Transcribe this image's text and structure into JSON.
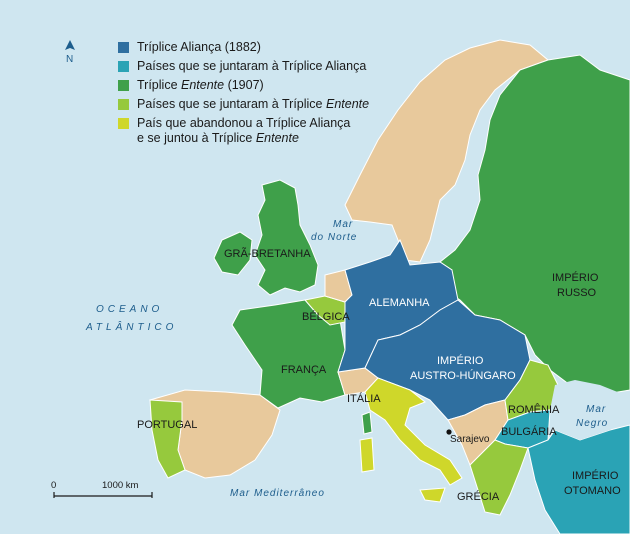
{
  "legend": {
    "items": [
      {
        "text": "Tríplice Aliança (1882)",
        "color": "#2f6fa0"
      },
      {
        "text": "Países que se juntaram à Tríplice Aliança",
        "color": "#2aa3b5"
      },
      {
        "text_pre": "Tríplice ",
        "text_em": "Entente",
        "text_post": " (1907)",
        "color": "#3fa04a"
      },
      {
        "text_pre": "Países que se juntaram à Tríplice ",
        "text_em": "Entente",
        "color": "#96c93d"
      },
      {
        "line1": "País que abandonou a Tríplice Aliança",
        "line2_pre": "e se juntou à Tríplice ",
        "line2_em": "Entente",
        "color": "#cfd72a"
      }
    ]
  },
  "compass": {
    "label": "N",
    "icon": "north-arrow-icon"
  },
  "scale": {
    "start": "0",
    "end": "1000 km"
  },
  "seas": {
    "mar_do_norte_1": "Mar",
    "mar_do_norte_2": "do Norte",
    "oceano_1": "OCEANO",
    "oceano_2": "ATLÂNTICO",
    "mediterraneo": "Mar Mediterrâneo",
    "mar_negro_1": "Mar",
    "mar_negro_2": "Negro"
  },
  "countries": {
    "gra_bretanha": "GRÃ-BRETANHA",
    "belgica": "BÉLGICA",
    "franca": "FRANÇA",
    "portugal": "PORTUGAL",
    "alemanha": "ALEMANHA",
    "austria_1": "IMPÉRIO",
    "austria_2": "AUSTRO-HÚNGARO",
    "russia_1": "IMPÉRIO",
    "russia_2": "RUSSO",
    "italia": "ITÁLIA",
    "romenia": "ROMÊNIA",
    "bulgaria": "BULGÁRIA",
    "grecia": "GRÉCIA",
    "otomano_1": "IMPÉRIO",
    "otomano_2": "OTOMANO",
    "sarajevo": "Sarajevo"
  }
}
